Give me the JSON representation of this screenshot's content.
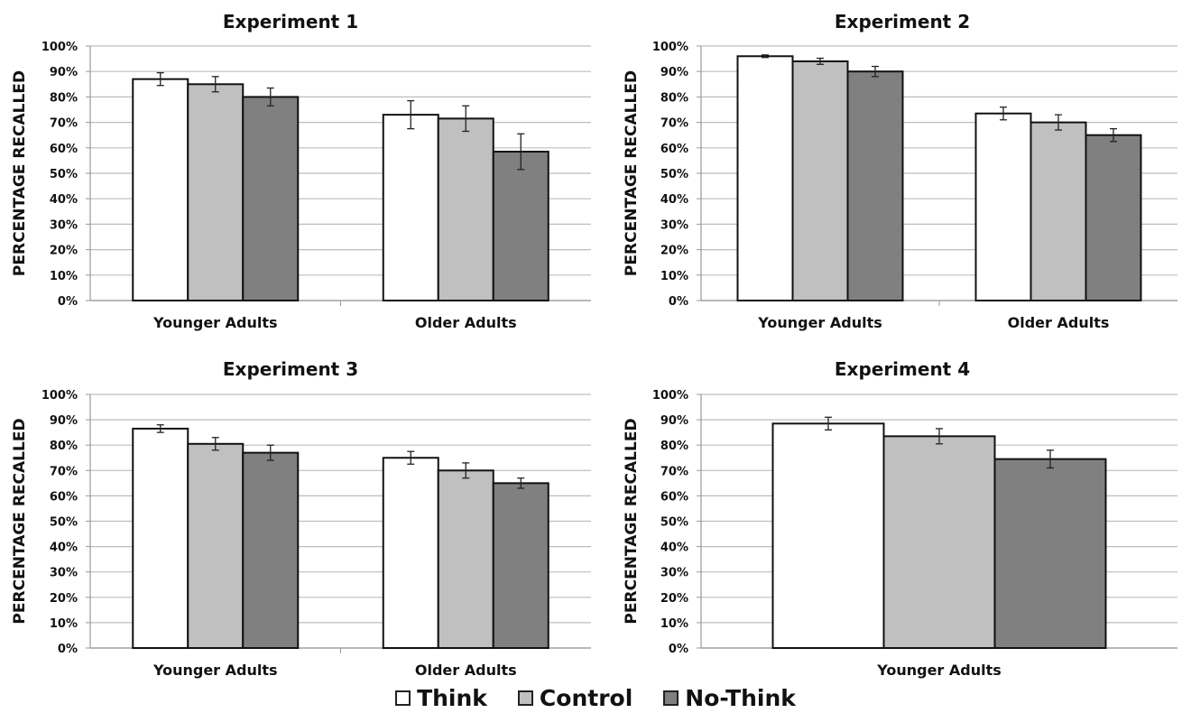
{
  "chart_data": [
    {
      "type": "bar",
      "title": "Experiment 1",
      "ylabel": "PERCENTAGE RECALLED",
      "ylim": [
        0,
        100
      ],
      "yticks": [
        "0%",
        "10%",
        "20%",
        "30%",
        "40%",
        "50%",
        "60%",
        "70%",
        "80%",
        "90%",
        "100%"
      ],
      "grid": true,
      "categories": [
        "Younger Adults",
        "Older Adults"
      ],
      "series": [
        {
          "name": "Think",
          "values": [
            87,
            73
          ],
          "errors": [
            2.5,
            5.5
          ]
        },
        {
          "name": "Control",
          "values": [
            85,
            71.5
          ],
          "errors": [
            3,
            5
          ]
        },
        {
          "name": "No-Think",
          "values": [
            80,
            58.5
          ],
          "errors": [
            3.5,
            7
          ]
        }
      ]
    },
    {
      "type": "bar",
      "title": "Experiment 2",
      "ylabel": "PERCENTAGE RECALLED",
      "ylim": [
        0,
        100
      ],
      "yticks": [
        "0%",
        "10%",
        "20%",
        "30%",
        "40%",
        "50%",
        "60%",
        "70%",
        "80%",
        "90%",
        "100%"
      ],
      "grid": true,
      "categories": [
        "Younger Adults",
        "Older Adults"
      ],
      "series": [
        {
          "name": "Think",
          "values": [
            96,
            73.5
          ],
          "errors": [
            0.5,
            2.5
          ]
        },
        {
          "name": "Control",
          "values": [
            94,
            70
          ],
          "errors": [
            1.2,
            3
          ]
        },
        {
          "name": "No-Think",
          "values": [
            90,
            65
          ],
          "errors": [
            2,
            2.5
          ]
        }
      ]
    },
    {
      "type": "bar",
      "title": "Experiment 3",
      "ylabel": "PERCENTAGE RECALLED",
      "ylim": [
        0,
        100
      ],
      "yticks": [
        "0%",
        "10%",
        "20%",
        "30%",
        "40%",
        "50%",
        "60%",
        "70%",
        "80%",
        "90%",
        "100%"
      ],
      "grid": true,
      "categories": [
        "Younger Adults",
        "Older Adults"
      ],
      "series": [
        {
          "name": "Think",
          "values": [
            86.5,
            75
          ],
          "errors": [
            1.5,
            2.5
          ]
        },
        {
          "name": "Control",
          "values": [
            80.5,
            70
          ],
          "errors": [
            2.5,
            3
          ]
        },
        {
          "name": "No-Think",
          "values": [
            77,
            65
          ],
          "errors": [
            3,
            2
          ]
        }
      ]
    },
    {
      "type": "bar",
      "title": "Experiment 4",
      "ylabel": "PERCENTAGE RECALLED",
      "ylim": [
        0,
        100
      ],
      "yticks": [
        "0%",
        "10%",
        "20%",
        "30%",
        "40%",
        "50%",
        "60%",
        "70%",
        "80%",
        "90%",
        "100%"
      ],
      "grid": true,
      "categories": [
        "Younger Adults"
      ],
      "series": [
        {
          "name": "Think",
          "values": [
            88.5
          ],
          "errors": [
            2.5
          ]
        },
        {
          "name": "Control",
          "values": [
            83.5
          ],
          "errors": [
            3
          ]
        },
        {
          "name": "No-Think",
          "values": [
            74.5
          ],
          "errors": [
            3.5
          ]
        }
      ]
    }
  ],
  "legend": {
    "position": "bottom",
    "items": [
      {
        "label": "Think",
        "color": "#ffffff"
      },
      {
        "label": "Control",
        "color": "#c0c0c0"
      },
      {
        "label": "No-Think",
        "color": "#808080"
      }
    ]
  }
}
